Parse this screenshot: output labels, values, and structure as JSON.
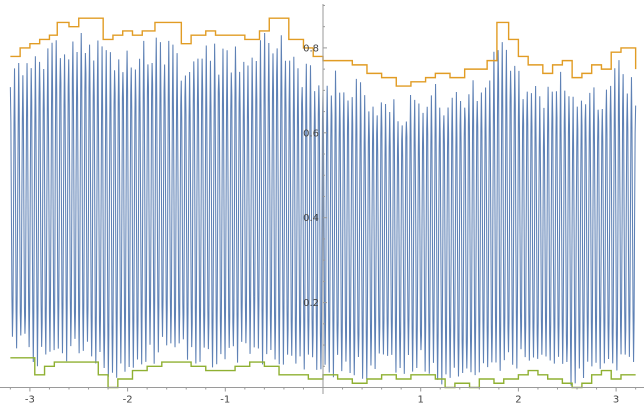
{
  "chart_data": {
    "type": "line",
    "title": "",
    "xlabel": "",
    "ylabel": "",
    "xlim": [
      -3.25,
      3.3
    ],
    "ylim": [
      0,
      0.92
    ],
    "x_ticks": [
      -3,
      -2,
      -1,
      1,
      2,
      3
    ],
    "x_tick_labels": [
      "-3",
      "-2",
      "-1",
      "1",
      "2",
      "3"
    ],
    "y_ticks": [
      0.2,
      0.4,
      0.6,
      0.8
    ],
    "y_tick_labels": [
      "0.2",
      "0.4",
      "0.6",
      "0.8"
    ],
    "grid": false,
    "colors": {
      "signal": "#5e81b5",
      "upper_envelope": "#e19c24",
      "lower_envelope": "#8fb032",
      "axis": "#9a9a9a"
    },
    "signal": {
      "oscillation_count": 150,
      "description_hidden": true
    },
    "series": [
      {
        "key": "upper_envelope",
        "points": [
          [
            -3.2,
            0.78
          ],
          [
            -3.1,
            0.8
          ],
          [
            -3.0,
            0.81
          ],
          [
            -2.9,
            0.82
          ],
          [
            -2.8,
            0.83
          ],
          [
            -2.72,
            0.86
          ],
          [
            -2.6,
            0.85
          ],
          [
            -2.5,
            0.87
          ],
          [
            -2.35,
            0.87
          ],
          [
            -2.25,
            0.82
          ],
          [
            -2.15,
            0.83
          ],
          [
            -2.05,
            0.84
          ],
          [
            -1.95,
            0.83
          ],
          [
            -1.85,
            0.84
          ],
          [
            -1.72,
            0.86
          ],
          [
            -1.6,
            0.86
          ],
          [
            -1.45,
            0.81
          ],
          [
            -1.35,
            0.83
          ],
          [
            -1.2,
            0.84
          ],
          [
            -1.1,
            0.83
          ],
          [
            -0.95,
            0.83
          ],
          [
            -0.8,
            0.82
          ],
          [
            -0.65,
            0.84
          ],
          [
            -0.55,
            0.87
          ],
          [
            -0.45,
            0.87
          ],
          [
            -0.35,
            0.82
          ],
          [
            -0.2,
            0.8
          ],
          [
            -0.1,
            0.78
          ],
          [
            0.0,
            0.77
          ],
          [
            0.15,
            0.77
          ],
          [
            0.3,
            0.76
          ],
          [
            0.45,
            0.74
          ],
          [
            0.6,
            0.73
          ],
          [
            0.75,
            0.71
          ],
          [
            0.9,
            0.72
          ],
          [
            1.05,
            0.73
          ],
          [
            1.15,
            0.74
          ],
          [
            1.3,
            0.73
          ],
          [
            1.45,
            0.75
          ],
          [
            1.55,
            0.75
          ],
          [
            1.68,
            0.77
          ],
          [
            1.78,
            0.86
          ],
          [
            1.9,
            0.82
          ],
          [
            2.0,
            0.78
          ],
          [
            2.1,
            0.76
          ],
          [
            2.25,
            0.74
          ],
          [
            2.35,
            0.76
          ],
          [
            2.45,
            0.77
          ],
          [
            2.55,
            0.73
          ],
          [
            2.65,
            0.74
          ],
          [
            2.75,
            0.76
          ],
          [
            2.85,
            0.75
          ],
          [
            2.95,
            0.79
          ],
          [
            3.05,
            0.8
          ],
          [
            3.2,
            0.75
          ]
        ]
      },
      {
        "key": "lower_envelope",
        "points": [
          [
            -3.2,
            0.07
          ],
          [
            -3.05,
            0.07
          ],
          [
            -2.95,
            0.03
          ],
          [
            -2.85,
            0.05
          ],
          [
            -2.75,
            0.06
          ],
          [
            -2.6,
            0.06
          ],
          [
            -2.45,
            0.06
          ],
          [
            -2.3,
            0.03
          ],
          [
            -2.2,
            0.0
          ],
          [
            -2.1,
            0.02
          ],
          [
            -1.95,
            0.04
          ],
          [
            -1.8,
            0.05
          ],
          [
            -1.65,
            0.06
          ],
          [
            -1.5,
            0.06
          ],
          [
            -1.35,
            0.05
          ],
          [
            -1.2,
            0.04
          ],
          [
            -1.05,
            0.04
          ],
          [
            -0.9,
            0.05
          ],
          [
            -0.75,
            0.06
          ],
          [
            -0.6,
            0.05
          ],
          [
            -0.45,
            0.03
          ],
          [
            -0.3,
            0.03
          ],
          [
            -0.15,
            0.02
          ],
          [
            0.0,
            0.03
          ],
          [
            0.15,
            0.02
          ],
          [
            0.3,
            0.01
          ],
          [
            0.45,
            0.02
          ],
          [
            0.6,
            0.03
          ],
          [
            0.75,
            0.02
          ],
          [
            0.9,
            0.03
          ],
          [
            1.05,
            0.03
          ],
          [
            1.15,
            0.02
          ],
          [
            1.25,
            0.0
          ],
          [
            1.35,
            0.01
          ],
          [
            1.5,
            0.0
          ],
          [
            1.6,
            0.02
          ],
          [
            1.75,
            0.01
          ],
          [
            1.85,
            0.02
          ],
          [
            2.0,
            0.03
          ],
          [
            2.1,
            0.04
          ],
          [
            2.2,
            0.03
          ],
          [
            2.3,
            0.02
          ],
          [
            2.45,
            0.01
          ],
          [
            2.55,
            0.0
          ],
          [
            2.65,
            0.01
          ],
          [
            2.75,
            0.03
          ],
          [
            2.85,
            0.04
          ],
          [
            2.95,
            0.02
          ],
          [
            3.05,
            0.03
          ],
          [
            3.2,
            0.03
          ]
        ]
      }
    ]
  }
}
